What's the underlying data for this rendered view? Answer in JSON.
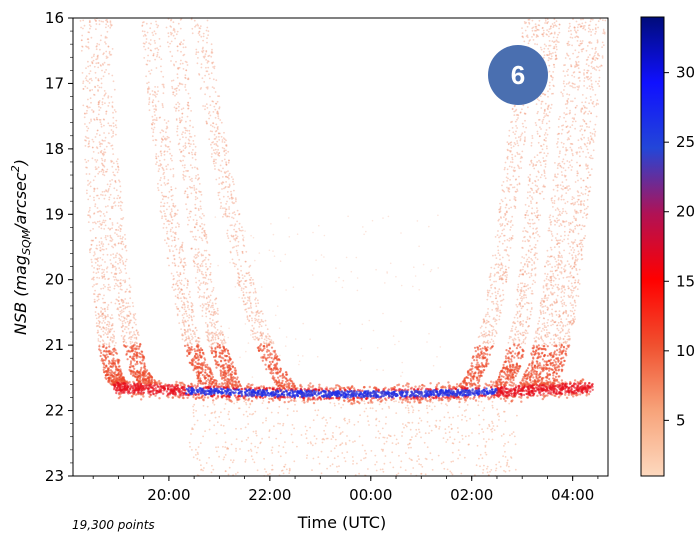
{
  "chart_data": {
    "type": "scatter",
    "density_colored": true,
    "xlabel": "Time (UTC)",
    "ylabel_main": "NSB (mag",
    "ylabel_sub": "SQM",
    "ylabel_mid": "/arcsec",
    "ylabel_sup": "2",
    "ylabel_end": ")",
    "x_ticks": [
      {
        "value": 20,
        "label": "20:00"
      },
      {
        "value": 22,
        "label": "22:00"
      },
      {
        "value": 24,
        "label": "00:00"
      },
      {
        "value": 26,
        "label": "02:00"
      },
      {
        "value": 28,
        "label": "04:00"
      }
    ],
    "xlim": [
      18.1,
      28.7
    ],
    "y_ticks": [
      {
        "value": 16,
        "label": "16"
      },
      {
        "value": 17,
        "label": "17"
      },
      {
        "value": 18,
        "label": "18"
      },
      {
        "value": 19,
        "label": "19"
      },
      {
        "value": 20,
        "label": "20"
      },
      {
        "value": 21,
        "label": "21"
      },
      {
        "value": 22,
        "label": "22"
      },
      {
        "value": 23,
        "label": "23"
      }
    ],
    "ylim": [
      23,
      16
    ],
    "y_inverted": true,
    "grid": false,
    "colorbar": {
      "min": 1,
      "max": 34,
      "ticks": [
        {
          "value": 5,
          "label": "5"
        },
        {
          "value": 10,
          "label": "10"
        },
        {
          "value": 15,
          "label": "15"
        },
        {
          "value": 20,
          "label": "20"
        },
        {
          "value": 25,
          "label": "25"
        },
        {
          "value": 30,
          "label": "30"
        }
      ],
      "colors": [
        "#fdd9bf",
        "#f7a37a",
        "#f0502f",
        "#ff0000",
        "#b01255",
        "#2346d8",
        "#1010ff",
        "#000c7a"
      ]
    },
    "point_count_label": "19,300 points",
    "badge": {
      "label": "6",
      "color": "#4a6fb0"
    },
    "series": [
      {
        "x": [
          18.4,
          18.5,
          18.6,
          18.7,
          18.8,
          18.9,
          19.0
        ],
        "y": [
          16.0,
          18.0,
          19.5,
          20.5,
          21.1,
          21.45,
          21.6
        ]
      },
      {
        "x": [
          18.7,
          18.8,
          18.95,
          19.1,
          19.25,
          19.4,
          19.6
        ],
        "y": [
          16.0,
          17.8,
          19.3,
          20.3,
          20.9,
          21.4,
          21.6
        ]
      },
      {
        "x": [
          19.6,
          19.8,
          20.0,
          20.2,
          20.4,
          20.6,
          20.8
        ],
        "y": [
          16.0,
          17.5,
          18.9,
          20.0,
          20.8,
          21.3,
          21.6
        ]
      },
      {
        "x": [
          20.1,
          20.3,
          20.5,
          20.7,
          20.9,
          21.1,
          21.3
        ],
        "y": [
          16.0,
          17.5,
          18.9,
          20.0,
          20.8,
          21.3,
          21.65
        ]
      },
      {
        "x": [
          20.6,
          20.9,
          21.2,
          21.5,
          21.8,
          22.1,
          22.4
        ],
        "y": [
          16.0,
          17.6,
          18.9,
          20.0,
          20.8,
          21.35,
          21.7
        ]
      },
      {
        "x": [
          25.9,
          26.15,
          26.4,
          26.6,
          26.8,
          27.0,
          27.2
        ],
        "y": [
          21.65,
          21.3,
          20.6,
          19.6,
          18.4,
          17.1,
          16.0
        ]
      },
      {
        "x": [
          26.6,
          26.8,
          27.0,
          27.15,
          27.3,
          27.45,
          27.6
        ],
        "y": [
          21.65,
          21.3,
          20.6,
          19.6,
          18.4,
          17.1,
          16.0
        ]
      },
      {
        "x": [
          27.1,
          27.3,
          27.5,
          27.65,
          27.8,
          27.95,
          28.1
        ],
        "y": [
          21.65,
          21.3,
          20.6,
          19.6,
          18.4,
          17.1,
          16.0
        ]
      },
      {
        "x": [
          27.5,
          27.7,
          27.9,
          28.05,
          28.2,
          28.35,
          28.5
        ],
        "y": [
          21.65,
          21.2,
          20.5,
          19.5,
          18.4,
          17.2,
          16.0
        ]
      }
    ],
    "floor": {
      "x_start": 18.9,
      "x_end": 28.4,
      "y_center": 21.65,
      "dip": 0.1
    }
  }
}
